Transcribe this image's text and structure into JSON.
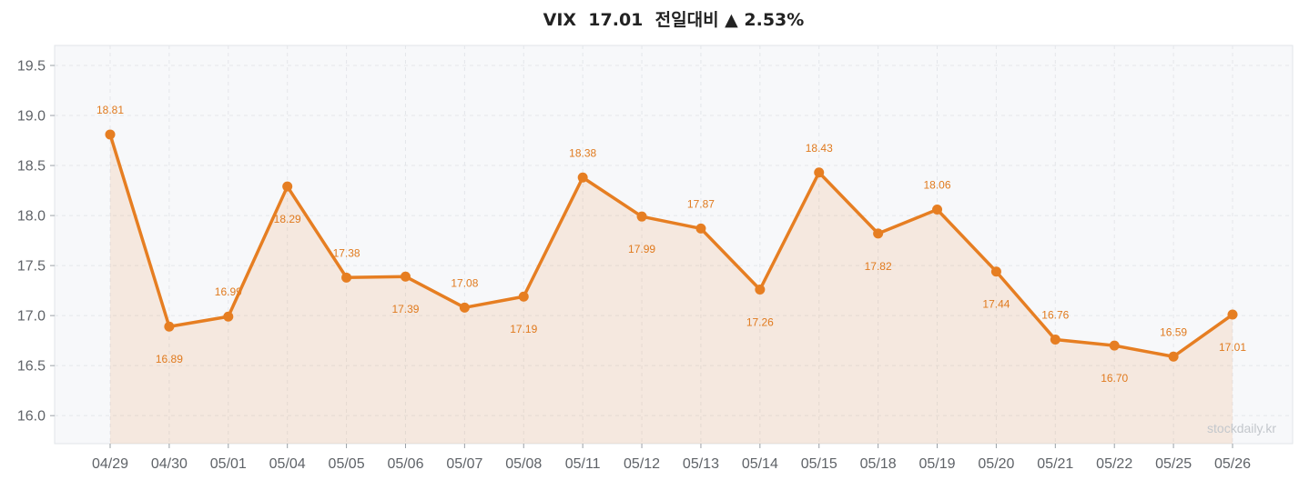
{
  "chart_data": {
    "type": "line",
    "title": "VIX  17.01  전일대비 ▲ 2.53%",
    "xlabel": "",
    "ylabel": "",
    "categories": [
      "04/29",
      "04/30",
      "05/01",
      "05/04",
      "05/05",
      "05/06",
      "05/07",
      "05/08",
      "05/11",
      "05/12",
      "05/13",
      "05/14",
      "05/15",
      "05/18",
      "05/19",
      "05/20",
      "05/21",
      "05/22",
      "05/25",
      "05/26"
    ],
    "series": [
      {
        "values": [
          18.81,
          16.89,
          16.99,
          18.29,
          17.38,
          17.39,
          17.08,
          17.19,
          18.38,
          17.99,
          17.87,
          17.26,
          18.43,
          17.82,
          18.06,
          17.44,
          16.76,
          16.7,
          16.59,
          17.01
        ],
        "color": "#e67e22",
        "area_fill": true,
        "markers": true,
        "data_labels": true
      }
    ],
    "yticks": [
      "16.0",
      "16.5",
      "17.0",
      "17.5",
      "18.0",
      "18.5",
      "19.0",
      "19.5"
    ],
    "ylim": [
      15.72,
      19.7
    ],
    "grid": true,
    "legend": "none",
    "background": "#f7f8fa"
  },
  "watermark": "stockdaily.kr"
}
